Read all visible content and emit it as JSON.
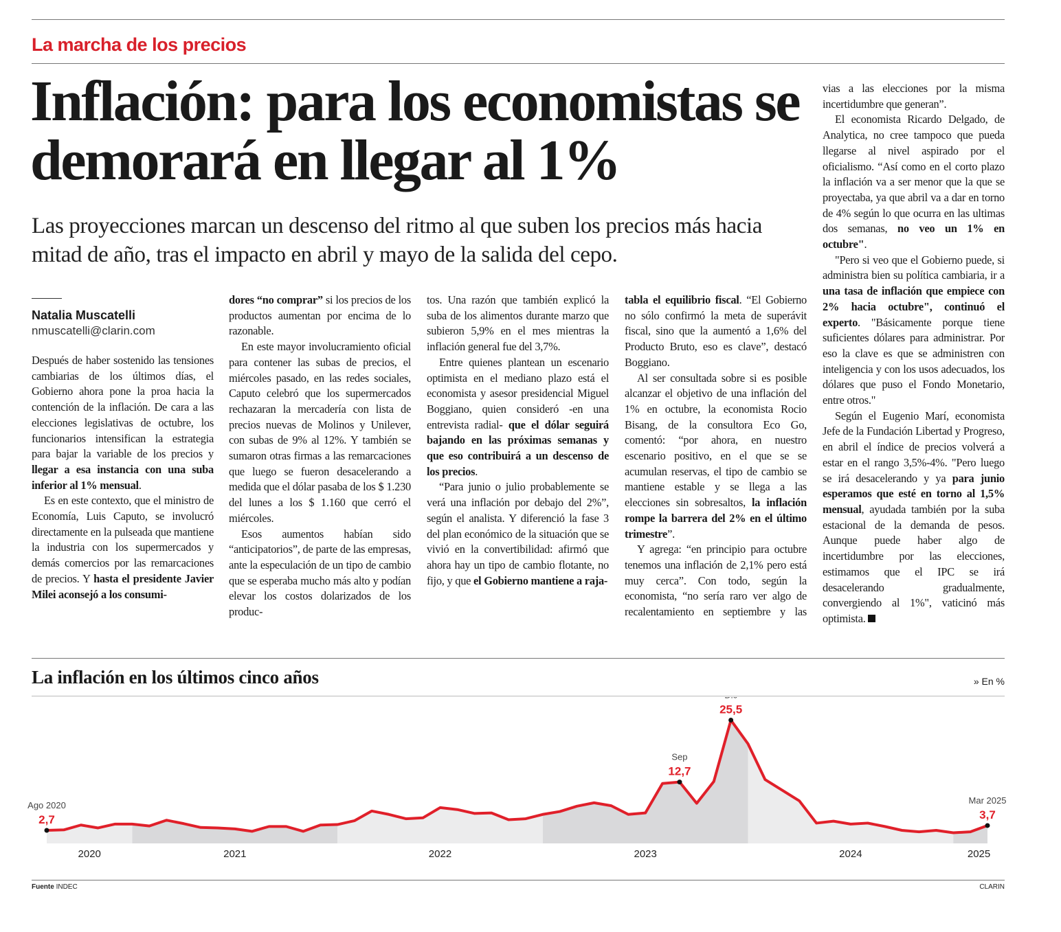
{
  "section": "La marcha de los precios",
  "headline": "Inflación: para los economistas se demorará en llegar al 1%",
  "deck": "Las proyecciones marcan un descenso del ritmo al que suben los precios más hacia mitad de año, tras el impacto en abril y mayo de la salida del cepo.",
  "author": "Natalia Muscatelli",
  "email": "nmuscatelli@clarin.com",
  "columns": [
    [
      [
        "Después de haber sostenido las tensiones cambiarias de los últimos días, el Gobierno ahora pone la proa hacia la contención de la inflación. De cara a las elecciones legislativas de octubre, los funcionarios intensifican la estrategia para bajar la variable de los precios y ",
        {
          "text": "llegar a esa instancia con una suba inferior al 1% mensual",
          "bold": true
        },
        "."
      ],
      [
        "Es en este contexto, que el ministro de Economía, Luis Caputo, se involucró directamente en la pulseada que mantiene la industria con los supermercados y demás comercios por las remarcaciones de precios. Y ",
        {
          "text": "hasta el presidente Javier Milei aconsejó a los consumi-",
          "bold": true
        }
      ]
    ],
    [
      [
        {
          "text": "dores “no comprar”",
          "bold": true
        },
        " si los precios de los productos aumentan por encima de lo razonable."
      ],
      [
        "En este mayor involucramiento oficial para contener las subas de precios, el miércoles pasado, en las redes sociales, Caputo celebró que los supermercados rechazaran la mercadería con lista de precios nuevas de Molinos y Unilever, con subas de 9% al 12%. Y también se sumaron otras firmas a las remarcaciones que luego se fueron desacelerando a medida que el dólar pasaba de los $ 1.230 del lunes a los $ 1.160 que cerró el miércoles."
      ],
      [
        "Esos aumentos habían sido “anticipatorios”, de parte de las empresas, ante la especulación de un tipo de cambio que se esperaba mucho más alto y podían elevar los costos dolarizados de los produc-"
      ]
    ],
    [
      [
        "tos. Una razón que también explicó la suba de los alimentos durante marzo que subieron 5,9% en el mes mientras la inflación general fue del 3,7%."
      ],
      [
        "Entre quienes plantean un escenario optimista en el mediano plazo está el economista y asesor presidencial Miguel Boggiano, quien consideró -en una entrevista radial- ",
        {
          "text": "que el dólar seguirá bajando en las próximas semanas y que eso contribuirá a un descenso de los precios",
          "bold": true
        },
        "."
      ],
      [
        "“Para junio o julio probablemente se verá una inflación por debajo del 2%”, según el analista. Y diferenció la fase 3 del plan económico de la situación que se vivió en la convertibilidad: afirmó que ahora hay un tipo de cambio flotante, no fijo, y que ",
        {
          "text": "el Gobierno mantiene a raja-",
          "bold": true
        }
      ]
    ],
    [
      [
        {
          "text": "tabla el equilibrio fiscal",
          "bold": true
        },
        ". “El Gobierno no sólo confirmó la meta de superávit fiscal, sino que la aumentó a 1,6% del Producto Bruto, eso es clave”, destacó Boggiano."
      ],
      [
        "Al ser consultada sobre si es posible alcanzar el objetivo de una inflación del 1% en octubre, la economista Rocio Bisang, de la consultora Eco Go, comentó: “por ahora, en nuestro escenario positivo, en el que se se acumulan reservas, el tipo de cambio se mantiene estable y se llega a las elecciones sin sobresaltos, ",
        {
          "text": "la inflación rompe la barrera del 2% en el último trimestre",
          "bold": true
        },
        "”."
      ],
      [
        "Y agrega: “en principio para octubre tenemos una inflación de 2,1% pero está muy cerca”. Con todo, según la economista, “no sería raro ver algo de recalentamiento en septiembre y las semanas pre-"
      ]
    ],
    [
      [
        "vias a las elecciones por la misma incertidumbre que generan”."
      ],
      [
        "El economista Ricardo Delgado, de Analytica, no cree tampoco que pueda llegarse al nivel aspirado por el oficialismo. “Así como en el corto plazo la inflación va a ser menor que la que se proyectaba, ya que abril va a dar en torno de 4% según lo que ocurra en las ultimas dos semanas, ",
        {
          "text": "no veo un 1% en octubre\"",
          "bold": true
        },
        "."
      ],
      [
        "\"Pero si veo que el Gobierno puede, si administra bien su política cambiaria, ir a ",
        {
          "text": "una tasa de inflación que empiece con 2% hacia octubre\", continuó el experto",
          "bold": true
        },
        ". \"Básicamente porque tiene suficientes dólares para administrar. Por eso la clave es que se administren con inteligencia y con los usos adecuados, los dólares que puso el Fondo Monetario, entre otros.\""
      ],
      [
        "Según el Eugenio Marí, economista Jefe de la Fundación Libertad y Progreso, en abril el índice de precios volverá a estar en el rango 3,5%-4%. \"Pero luego se irá desacelerando y ya ",
        {
          "text": "para junio esperamos que esté en torno al 1,5% mensual",
          "bold": true
        },
        ", ayudada también por la suba estacional de la demanda de pesos. Aunque puede haber algo de incertidumbre por las elecciones, estimamos que el IPC se irá desacelerando gradualmente, convergiendo al 1%\", vaticinó más optimista."
      ]
    ]
  ],
  "chart_data": {
    "type": "line",
    "title": "La inflación en los últimos cinco años",
    "unit": "» En %",
    "x": [
      "2020-08",
      "2020-09",
      "2020-10",
      "2020-11",
      "2020-12",
      "2021-01",
      "2021-02",
      "2021-03",
      "2021-04",
      "2021-05",
      "2021-06",
      "2021-07",
      "2021-08",
      "2021-09",
      "2021-10",
      "2021-11",
      "2021-12",
      "2022-01",
      "2022-02",
      "2022-03",
      "2022-04",
      "2022-05",
      "2022-06",
      "2022-07",
      "2022-08",
      "2022-09",
      "2022-10",
      "2022-11",
      "2022-12",
      "2023-01",
      "2023-02",
      "2023-03",
      "2023-04",
      "2023-05",
      "2023-06",
      "2023-07",
      "2023-08",
      "2023-09",
      "2023-10",
      "2023-11",
      "2023-12",
      "2024-01",
      "2024-02",
      "2024-03",
      "2024-04",
      "2024-05",
      "2024-06",
      "2024-07",
      "2024-08",
      "2024-09",
      "2024-10",
      "2024-11",
      "2024-12",
      "2025-01",
      "2025-02",
      "2025-03"
    ],
    "values": [
      2.7,
      2.8,
      3.8,
      3.2,
      4.0,
      4.0,
      3.6,
      4.8,
      4.1,
      3.3,
      3.2,
      3.0,
      2.5,
      3.5,
      3.5,
      2.5,
      3.8,
      3.9,
      4.7,
      6.7,
      6.0,
      5.1,
      5.3,
      7.4,
      7.0,
      6.2,
      6.3,
      4.9,
      5.1,
      6.0,
      6.6,
      7.7,
      8.4,
      7.8,
      6.0,
      6.3,
      12.4,
      12.7,
      8.3,
      12.8,
      25.5,
      20.6,
      13.2,
      11.0,
      8.8,
      4.2,
      4.6,
      4.0,
      4.2,
      3.5,
      2.7,
      2.4,
      2.7,
      2.2,
      2.4,
      3.7
    ],
    "value_labels": [
      "2,7",
      null,
      null,
      null,
      null,
      null,
      null,
      null,
      null,
      null,
      null,
      null,
      null,
      null,
      null,
      null,
      null,
      null,
      null,
      null,
      null,
      null,
      null,
      null,
      null,
      null,
      null,
      null,
      null,
      null,
      null,
      null,
      null,
      null,
      null,
      null,
      null,
      "12,7",
      null,
      null,
      "25,5",
      null,
      null,
      null,
      null,
      null,
      null,
      null,
      null,
      null,
      null,
      null,
      null,
      null,
      null,
      "3,7"
    ],
    "annotations": [
      {
        "x": "2020-08",
        "text": "Ago 2020"
      },
      {
        "x": "2023-09",
        "text": "Sep"
      },
      {
        "x": "2023-12",
        "text": "Dic"
      },
      {
        "x": "2025-03",
        "text": "Mar 2025"
      }
    ],
    "years": [
      "2020",
      "2021",
      "2022",
      "2023",
      "2024",
      "2025"
    ],
    "ylim": [
      0,
      26
    ],
    "color": "#e0202a",
    "source_label": "Fuente",
    "source": "INDEC",
    "credit": "CLARIN"
  }
}
